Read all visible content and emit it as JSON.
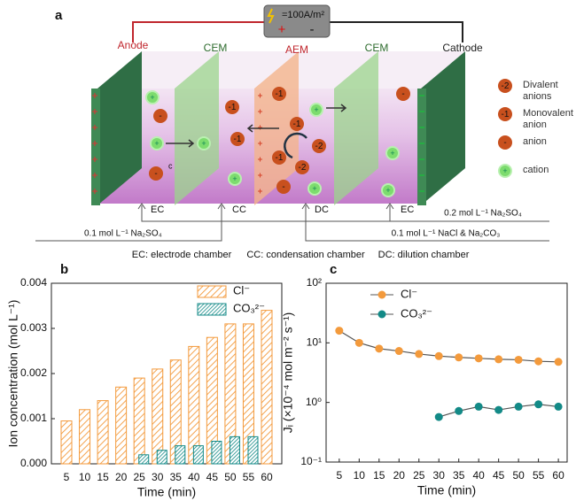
{
  "diagram": {
    "panel": "a",
    "current": "=100A/m²",
    "plus": "+",
    "minus": "-",
    "membranes": [
      "Anode",
      "CEM",
      "AEM",
      "CEM",
      "Cathode"
    ],
    "chambers": [
      "EC",
      "CC",
      "DC",
      "EC"
    ],
    "feeds": [
      "0.2 mol L⁻¹ Na₂SO₄",
      "0.1 mol L⁻¹ Na₂SO₄",
      "0.1 mol L⁻¹ NaCl & Na₂CO₃"
    ],
    "chamber_key": [
      "EC: electrode chamber",
      "CC: condensation chamber",
      "DC: dilution chamber"
    ],
    "ions": [
      "+",
      "-",
      "+",
      "+",
      "-",
      "+",
      "-1",
      "-1",
      "-1",
      "-1",
      "-2",
      "-1",
      "-2",
      "-",
      "+",
      "+",
      "+",
      "+",
      "-"
    ],
    "ion_note": "c",
    "legend": [
      {
        "symbol": "-2",
        "label": "Divalent anions"
      },
      {
        "symbol": "-1",
        "label": "Monovalent anion"
      },
      {
        "symbol": "-",
        "label": "anion"
      },
      {
        "symbol": "+",
        "label": "cation"
      }
    ]
  },
  "chart_data": [
    {
      "type": "bar",
      "panel": "b",
      "xlabel": "Time (min)",
      "ylabel": "Ion concentration (mol L⁻¹)",
      "categories": [
        5,
        10,
        15,
        20,
        25,
        30,
        35,
        40,
        45,
        50,
        55,
        60
      ],
      "series": [
        {
          "name": "Cl⁻",
          "color": "#f39a3c",
          "values": [
            0.00095,
            0.0012,
            0.0014,
            0.0017,
            0.0019,
            0.0021,
            0.0023,
            0.0026,
            0.0028,
            0.0031,
            0.0031,
            0.0034
          ]
        },
        {
          "name": "CO₃²⁻",
          "color": "#138a87",
          "values": [
            null,
            null,
            null,
            null,
            null,
            0.0002,
            0.0003,
            0.0004,
            0.0004,
            0.0005,
            0.0006,
            0.0006
          ]
        }
      ],
      "ylim": [
        0,
        0.004
      ],
      "yticks": [
        {
          "value": 0,
          "label": "0.000"
        },
        {
          "value": 0.001,
          "label": "0.001"
        },
        {
          "value": 0.002,
          "label": "0.002"
        },
        {
          "value": 0.003,
          "label": "0.003"
        },
        {
          "value": 0.004,
          "label": "0.004"
        }
      ],
      "hatch": true,
      "legend": "upper right"
    },
    {
      "type": "line",
      "panel": "c",
      "xlabel": "Time (min)",
      "ylabel": "Jᵢ (×10⁻⁴ mol m⁻² s⁻¹)",
      "x": [
        5,
        10,
        15,
        20,
        25,
        30,
        35,
        40,
        45,
        50,
        55,
        60
      ],
      "series": [
        {
          "name": "Cl⁻",
          "color": "#f39a3c",
          "values": [
            16,
            10,
            8,
            7.3,
            6.5,
            6,
            5.7,
            5.5,
            5.3,
            5.2,
            4.9,
            4.8
          ]
        },
        {
          "name": "CO₃²⁻",
          "color": "#138a87",
          "values": [
            null,
            null,
            null,
            null,
            null,
            0.57,
            0.72,
            0.85,
            0.75,
            0.85,
            0.93,
            0.85
          ]
        }
      ],
      "xlim": [
        1.7,
        62.2
      ],
      "xticks": [
        5,
        10,
        15,
        20,
        25,
        30,
        35,
        40,
        45,
        50,
        55,
        60
      ],
      "ylim": [
        0.1,
        100
      ],
      "ylog": true,
      "yticks": [
        {
          "value": 0.1,
          "label": "10⁻¹"
        },
        {
          "value": 1,
          "label": "10⁰"
        },
        {
          "value": 10,
          "label": "10¹"
        },
        {
          "value": 100,
          "label": "10²"
        }
      ],
      "legend": "upper left"
    }
  ]
}
